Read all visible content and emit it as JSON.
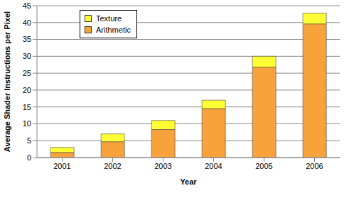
{
  "chart_data": {
    "type": "bar",
    "stacked": true,
    "categories": [
      "2001",
      "2002",
      "2003",
      "2004",
      "2005",
      "2006"
    ],
    "series": [
      {
        "name": "Arithmetic",
        "color": "#f7a23b",
        "values": [
          1.5,
          4.7,
          8.3,
          14.5,
          26.8,
          39.6
        ]
      },
      {
        "name": "Texture",
        "color": "#ffff33",
        "values": [
          1.5,
          2.3,
          2.7,
          2.5,
          3.2,
          3.2
        ]
      }
    ],
    "xlabel": "Year",
    "ylabel": "Average Shader Instructions per Pixel",
    "ylim": [
      0,
      45
    ],
    "yticks": [
      0,
      5,
      10,
      15,
      20,
      25,
      30,
      35,
      40,
      45
    ],
    "grid": true,
    "legend": "upper left"
  }
}
